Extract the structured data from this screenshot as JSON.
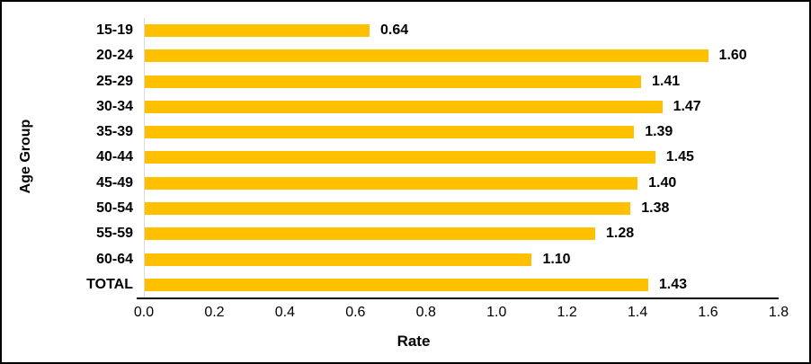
{
  "chart_data": {
    "type": "bar",
    "orientation": "horizontal",
    "categories": [
      "15-19",
      "20-24",
      "25-29",
      "30-34",
      "35-39",
      "40-44",
      "45-49",
      "50-54",
      "55-59",
      "60-64",
      "TOTAL"
    ],
    "values": [
      0.64,
      1.6,
      1.41,
      1.47,
      1.39,
      1.45,
      1.4,
      1.38,
      1.28,
      1.1,
      1.43
    ],
    "value_labels": [
      "0.64",
      "1.60",
      "1.41",
      "1.47",
      "1.39",
      "1.45",
      "1.40",
      "1.38",
      "1.28",
      "1.10",
      "1.43"
    ],
    "xlabel": "Rate",
    "ylabel": "Age Group",
    "xlim": [
      0,
      1.8
    ],
    "xticks": [
      "0.0",
      "0.2",
      "0.4",
      "0.6",
      "0.8",
      "1.0",
      "1.2",
      "1.4",
      "1.6",
      "1.8"
    ],
    "grid": false,
    "legend": "none",
    "colors": {
      "bar": "#FFC000",
      "category_axis_line": "#D9D9D9",
      "value_axis_line": "#000000",
      "text": "#000000",
      "background": "#FFFFFF",
      "frame_border": "#000000"
    }
  }
}
